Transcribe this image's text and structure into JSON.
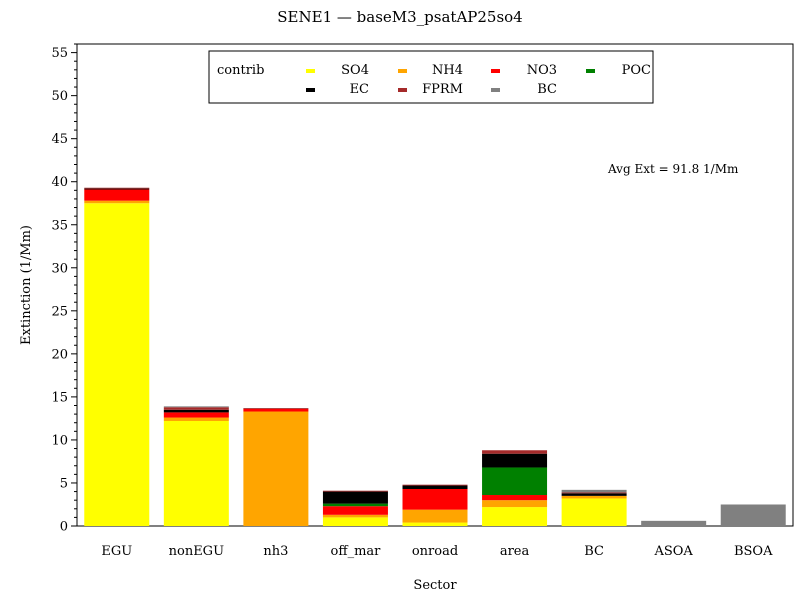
{
  "chart_data": {
    "type": "bar",
    "stacked": true,
    "title": "SENE1 — baseM3_psatAP25so4",
    "xlabel": "Sector",
    "ylabel": "Extinction (1/Mm)",
    "ylim": [
      0,
      56
    ],
    "yticks": [
      0,
      5,
      10,
      15,
      20,
      25,
      30,
      35,
      40,
      45,
      50,
      55
    ],
    "grid": false,
    "legend_placement": "top-center",
    "legend_title": "contrib",
    "annotation": "Avg Ext =  91.8  1/Mm",
    "categories": [
      "EGU",
      "nonEGU",
      "nh3",
      "off_mar",
      "onroad",
      "area",
      "BC",
      "ASOA",
      "BSOA"
    ],
    "series": [
      {
        "name": "SO4",
        "color": "#ffff00",
        "values": [
          37.5,
          12.2,
          0.0,
          1.0,
          0.4,
          2.2,
          3.2,
          0.0,
          0.0
        ]
      },
      {
        "name": "NH4",
        "color": "#ffa500",
        "values": [
          0.3,
          0.4,
          13.3,
          0.3,
          1.5,
          0.8,
          0.3,
          0.0,
          0.0
        ]
      },
      {
        "name": "NO3",
        "color": "#ff0000",
        "values": [
          1.3,
          0.6,
          0.3,
          1.0,
          2.4,
          0.6,
          0.0,
          0.0,
          0.0
        ]
      },
      {
        "name": "POC",
        "color": "#008000",
        "values": [
          0.0,
          0.0,
          0.0,
          0.3,
          0.0,
          3.2,
          0.0,
          0.0,
          0.0
        ]
      },
      {
        "name": "EC",
        "color": "#000000",
        "values": [
          0.1,
          0.3,
          0.0,
          1.4,
          0.4,
          1.6,
          0.3,
          0.0,
          0.0
        ]
      },
      {
        "name": "FPRM",
        "color": "#a52a2a",
        "values": [
          0.1,
          0.3,
          0.1,
          0.1,
          0.1,
          0.4,
          0.1,
          0.0,
          0.0
        ]
      },
      {
        "name": "BC",
        "color": "#808080",
        "values": [
          0.0,
          0.1,
          0.0,
          0.0,
          0.0,
          0.0,
          0.3,
          0.6,
          2.5
        ]
      }
    ]
  }
}
